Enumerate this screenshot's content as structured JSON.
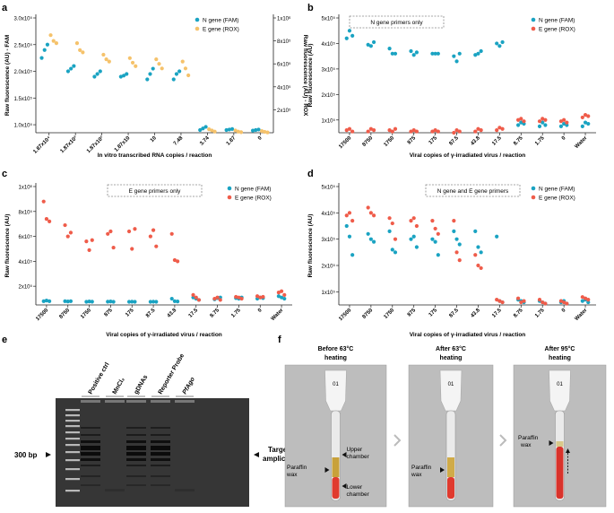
{
  "colors": {
    "teal": "#1aa3c2",
    "orange": "#f5c26b",
    "red": "#ef5c4a",
    "axis": "#222222",
    "dashbox": "#888888",
    "gelbg": "#3a3a3a",
    "photobg": "#bdbdbd"
  },
  "chart_data": [
    {
      "panel": "a",
      "type": "scatter",
      "dual_axis": true,
      "ylabel_left": "Raw fluorescence (AU) - FAM",
      "ylabel_right": "Raw fluorescence (AU) - ROX",
      "xlabel": "In vitro  transcribed RNA copies / reaction",
      "categories": [
        "1.87x10⁴",
        "1.87x10³",
        "1.87x10²",
        "1.87x10",
        "10",
        "7.48",
        "3.74",
        "1.87",
        "0"
      ],
      "left_ticks": [
        "1.0x10⁵",
        "1.5x10⁵",
        "2.0x10⁵",
        "2.5x10⁵",
        "3.0x10⁵"
      ],
      "right_ticks": [
        "2x10⁵",
        "4x10⁵",
        "6x10⁵",
        "8x10⁵",
        "1x10⁶"
      ],
      "ylim_left": [
        85000,
        300000
      ],
      "ylim_right": [
        0,
        1000000
      ],
      "legend": [
        "N gene (FAM)",
        "E gene (ROX)"
      ],
      "series": [
        {
          "name": "N gene (FAM)",
          "axis": "left",
          "values": [
            [
              225000,
              240000,
              250000
            ],
            [
              200000,
              205000,
              210000
            ],
            [
              190000,
              195000,
              200000
            ],
            [
              190000,
              192000,
              195000
            ],
            [
              185000,
              195000,
              205000
            ],
            [
              185000,
              195000,
              200000
            ],
            [
              90000,
              93000,
              96000
            ],
            [
              90000,
              91000,
              92000
            ],
            [
              89000,
              90000,
              91000
            ]
          ]
        },
        {
          "name": "E gene (ROX)",
          "axis": "right",
          "values": [
            [
              850000,
              800000,
              780000
            ],
            [
              780000,
              720000,
              700000
            ],
            [
              680000,
              640000,
              620000
            ],
            [
              650000,
              610000,
              580000
            ],
            [
              640000,
              600000,
              560000
            ],
            [
              620000,
              560000,
              500000
            ],
            [
              30000,
              20000,
              10000
            ],
            [
              20000,
              10000,
              5000
            ],
            [
              15000,
              8000,
              3000
            ]
          ]
        }
      ]
    },
    {
      "panel": "b",
      "type": "scatter",
      "annotation": "N gene primers only",
      "ylabel": "Raw fluorescence (AU)",
      "xlabel": "Viral copies of γ-irradiated virus / reaction",
      "categories": [
        "17500",
        "8750",
        "1750",
        "875",
        "175",
        "87.5",
        "43.8",
        "17.5",
        "8.75",
        "1.75",
        "0",
        "Water"
      ],
      "yticks": [
        "1x10⁵",
        "2x10⁵",
        "3x10⁵",
        "4x10⁵",
        "5x10⁵"
      ],
      "ylim": [
        50000,
        500000
      ],
      "legend": [
        "N gene (FAM)",
        "E gene (ROX)"
      ],
      "series": [
        {
          "name": "N gene (FAM)",
          "values": [
            [
              420000,
              450000,
              430000
            ],
            [
              395000,
              390000,
              405000
            ],
            [
              380000,
              360000,
              360000
            ],
            [
              370000,
              355000,
              365000
            ],
            [
              360000,
              360000,
              360000
            ],
            [
              350000,
              330000,
              360000
            ],
            [
              355000,
              360000,
              370000
            ],
            [
              400000,
              390000,
              405000
            ],
            [
              80000,
              90000,
              85000
            ],
            [
              75000,
              90000,
              80000
            ],
            [
              75000,
              85000,
              80000
            ],
            [
              75000,
              90000,
              85000
            ]
          ]
        },
        {
          "name": "E gene (ROX)",
          "values": [
            [
              60000,
              65000,
              55000
            ],
            [
              55000,
              65000,
              60000
            ],
            [
              60000,
              55000,
              65000
            ],
            [
              55000,
              60000,
              55000
            ],
            [
              55000,
              60000,
              55000
            ],
            [
              50000,
              60000,
              55000
            ],
            [
              55000,
              65000,
              60000
            ],
            [
              60000,
              70000,
              65000
            ],
            [
              100000,
              105000,
              95000
            ],
            [
              95000,
              105000,
              100000
            ],
            [
              95000,
              100000,
              90000
            ],
            [
              110000,
              120000,
              115000
            ]
          ]
        }
      ]
    },
    {
      "panel": "c",
      "type": "scatter",
      "annotation": "E gene primers only",
      "ylabel": "Raw fluorescence (AU)",
      "xlabel": "Viral copies of γ-irradiated virus / reaction",
      "categories": [
        "17500",
        "8750",
        "1750",
        "875",
        "175",
        "87.5",
        "43.8",
        "17.5",
        "8.75",
        "1.75",
        "0",
        "Water"
      ],
      "yticks": [
        "2x10⁵",
        "4x10⁵",
        "6x10⁵",
        "8x10⁵",
        "1x10⁶"
      ],
      "ylim": [
        50000,
        1000000
      ],
      "legend": [
        "N gene (FAM)",
        "E gene (ROX)"
      ],
      "series": [
        {
          "name": "N gene (FAM)",
          "values": [
            [
              80000,
              85000,
              80000
            ],
            [
              80000,
              78000,
              80000
            ],
            [
              75000,
              78000,
              76000
            ],
            [
              76000,
              78000,
              75000
            ],
            [
              75000,
              76000,
              75000
            ],
            [
              75000,
              76000,
              75000
            ],
            [
              100000,
              80000,
              78000
            ],
            [
              110000,
              100000,
              90000
            ],
            [
              95000,
              105000,
              110000
            ],
            [
              105000,
              100000,
              110000
            ],
            [
              100000,
              110000,
              105000
            ],
            [
              120000,
              110000,
              100000
            ]
          ]
        },
        {
          "name": "E gene (ROX)",
          "values": [
            [
              880000,
              740000,
              720000
            ],
            [
              690000,
              600000,
              630000
            ],
            [
              560000,
              490000,
              570000
            ],
            [
              620000,
              640000,
              510000
            ],
            [
              640000,
              500000,
              660000
            ],
            [
              600000,
              650000,
              520000
            ],
            [
              620000,
              410000,
              400000
            ],
            [
              130000,
              110000,
              90000
            ],
            [
              100000,
              110000,
              90000
            ],
            [
              115000,
              110000,
              100000
            ],
            [
              120000,
              110000,
              115000
            ],
            [
              150000,
              160000,
              130000
            ]
          ]
        }
      ]
    },
    {
      "panel": "d",
      "type": "scatter",
      "annotation": "N gene and E gene primers",
      "ylabel": "Raw fluorescence (AU)",
      "xlabel": "Viral copies of γ-irradiated virus / reaction",
      "categories": [
        "17500",
        "8750",
        "1750",
        "875",
        "175",
        "87.5",
        "43.8",
        "17.5",
        "8.75",
        "1.75",
        "0",
        "Water"
      ],
      "yticks": [
        "1x10⁵",
        "2x10⁵",
        "3x10⁵",
        "4x10⁵",
        "5x10⁵"
      ],
      "ylim": [
        50000,
        500000
      ],
      "legend": [
        "N gene (FAM)",
        "E gene (ROX)"
      ],
      "series": [
        {
          "name": "N gene (FAM)",
          "values": [
            [
              350000,
              310000,
              240000
            ],
            [
              320000,
              300000,
              290000
            ],
            [
              330000,
              260000,
              250000
            ],
            [
              300000,
              310000,
              270000
            ],
            [
              300000,
              290000,
              240000
            ],
            [
              330000,
              300000,
              280000
            ],
            [
              330000,
              270000,
              250000
            ],
            [
              310000,
              65000,
              60000
            ],
            [
              70000,
              65000,
              60000
            ],
            [
              65000,
              60000,
              55000
            ],
            [
              60000,
              65000,
              55000
            ],
            [
              65000,
              70000,
              60000
            ]
          ]
        },
        {
          "name": "E gene (ROX)",
          "values": [
            [
              390000,
              400000,
              370000
            ],
            [
              420000,
              400000,
              390000
            ],
            [
              380000,
              360000,
              300000
            ],
            [
              370000,
              380000,
              350000
            ],
            [
              370000,
              340000,
              320000
            ],
            [
              370000,
              250000,
              220000
            ],
            [
              240000,
              200000,
              190000
            ],
            [
              70000,
              65000,
              60000
            ],
            [
              75000,
              60000,
              65000
            ],
            [
              70000,
              60000,
              55000
            ],
            [
              65000,
              60000,
              55000
            ],
            [
              80000,
              75000,
              70000
            ]
          ]
        }
      ]
    }
  ],
  "panel_e": {
    "label": "e",
    "lanes": [
      "Positive ctrl",
      "MnCl₂",
      "gDNAs",
      "Reporter Probe",
      "PfAgo"
    ],
    "marker_label": "300 bp",
    "target_label_line1": "Target",
    "target_label_line2": "amplicons"
  },
  "panel_f": {
    "label": "f",
    "photos": [
      {
        "title_line1": "Before 63°C",
        "title_line2": "heating",
        "tube_label": "01",
        "labels": [
          "Paraffin wax",
          "Upper chamber",
          "Lower chamber"
        ]
      },
      {
        "title_line1": "After 63°C",
        "title_line2": "heating",
        "tube_label": "01",
        "labels": [
          "Paraffin wax"
        ]
      },
      {
        "title_line1": "After 95°C",
        "title_line2": "heating",
        "tube_label": "01",
        "labels": [
          "Paraffin wax"
        ]
      }
    ]
  }
}
